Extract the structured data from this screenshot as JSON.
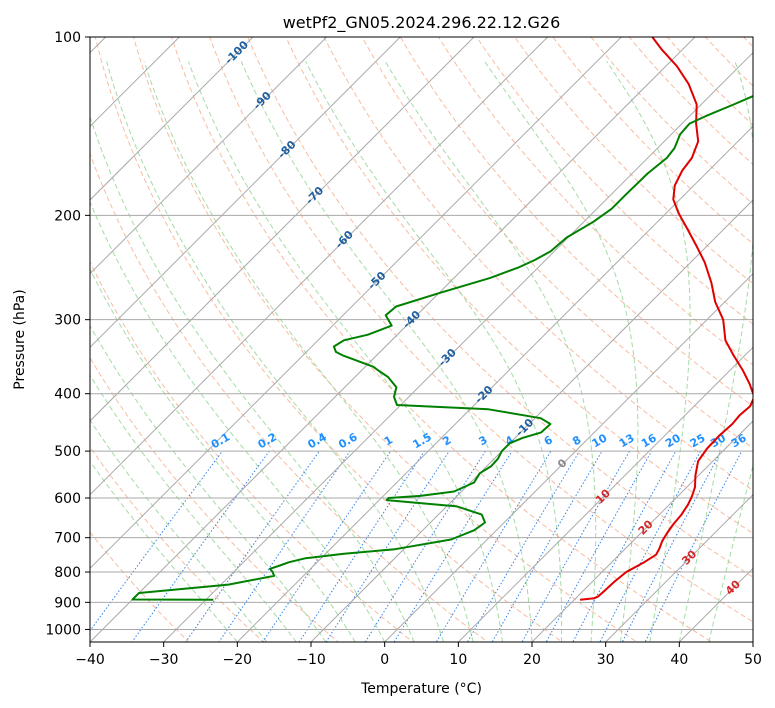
{
  "chart_data": {
    "type": "line",
    "title": "wetPf2_GN05.2024.296.22.12.G26",
    "xlabel": "Temperature (°C)",
    "ylabel": "Pressure (hPa)",
    "xlim": [
      -40,
      50
    ],
    "ylim": [
      1050,
      100
    ],
    "y_scale": "log",
    "x_ticks": [
      -40,
      -30,
      -20,
      -10,
      0,
      10,
      20,
      30,
      40,
      50
    ],
    "x_tick_labels": [
      "−40",
      "−30",
      "−20",
      "−10",
      "0",
      "10",
      "20",
      "30",
      "40",
      "50"
    ],
    "y_ticks": [
      100,
      200,
      300,
      400,
      500,
      600,
      700,
      800,
      900,
      1000
    ],
    "y_tick_labels": [
      "100",
      "200",
      "300",
      "400",
      "500",
      "600",
      "700",
      "800",
      "900",
      "1000"
    ],
    "grid": true,
    "colors": {
      "temperature": "#e00000",
      "dewpoint": "#008000",
      "isotherm": "#a9a9a9",
      "dry_adiabat": "#f4a582",
      "moist_adiabat": "#8fd18f",
      "mixing_ratio": "#1f77e4",
      "isotherm_label": "#1f5fa0",
      "mixing_label": "#1e90ff",
      "warm_label": "#d62728"
    },
    "series": [
      {
        "key": "temperature",
        "points": [
          [
            891,
            20.8
          ],
          [
            886,
            22.5
          ],
          [
            879,
            22.8
          ],
          [
            860,
            22.9
          ],
          [
            830,
            23.0
          ],
          [
            800,
            23.3
          ],
          [
            770,
            24.4
          ],
          [
            748,
            25.0
          ],
          [
            730,
            24.6
          ],
          [
            710,
            24.0
          ],
          [
            690,
            23.6
          ],
          [
            665,
            23.2
          ],
          [
            640,
            23.0
          ],
          [
            615,
            22.5
          ],
          [
            595,
            21.9
          ],
          [
            575,
            21.1
          ],
          [
            550,
            19.6
          ],
          [
            520,
            18.0
          ],
          [
            495,
            17.5
          ],
          [
            470,
            17.4
          ],
          [
            450,
            17.6
          ],
          [
            435,
            17.4
          ],
          [
            420,
            17.6
          ],
          [
            405,
            16.9
          ],
          [
            385,
            14.5
          ],
          [
            365,
            11.7
          ],
          [
            345,
            8.5
          ],
          [
            325,
            5.3
          ],
          [
            300,
            2.2
          ],
          [
            280,
            -1.3
          ],
          [
            260,
            -4.4
          ],
          [
            240,
            -8.1
          ],
          [
            225,
            -11.5
          ],
          [
            210,
            -15.2
          ],
          [
            198,
            -18.4
          ],
          [
            188,
            -20.9
          ],
          [
            178,
            -22.6
          ],
          [
            168,
            -23.6
          ],
          [
            160,
            -24.0
          ],
          [
            150,
            -25.4
          ],
          [
            140,
            -28.1
          ],
          [
            130,
            -30.6
          ],
          [
            120,
            -34.5
          ],
          [
            112,
            -38.5
          ],
          [
            105,
            -42.8
          ],
          [
            100,
            -45.8
          ]
        ]
      },
      {
        "key": "dewpoint",
        "points": [
          [
            891,
            -29.0
          ],
          [
            890,
            -40.0
          ],
          [
            870,
            -40.0
          ],
          [
            868,
            -40.0
          ],
          [
            840,
            -29.0
          ],
          [
            812,
            -24.0
          ],
          [
            800,
            -24.7
          ],
          [
            790,
            -25.5
          ],
          [
            780,
            -24.6
          ],
          [
            770,
            -23.8
          ],
          [
            758,
            -22.1
          ],
          [
            745,
            -17.5
          ],
          [
            732,
            -11.2
          ],
          [
            705,
            -4.9
          ],
          [
            680,
            -3.0
          ],
          [
            660,
            -2.6
          ],
          [
            640,
            -4.1
          ],
          [
            620,
            -8.6
          ],
          [
            605,
            -19.0
          ],
          [
            600,
            -19.0
          ],
          [
            595,
            -15.0
          ],
          [
            585,
            -11.0
          ],
          [
            565,
            -9.5
          ],
          [
            545,
            -10.0
          ],
          [
            530,
            -9.4
          ],
          [
            515,
            -9.5
          ],
          [
            500,
            -10.0
          ],
          [
            485,
            -10.0
          ],
          [
            475,
            -9.0
          ],
          [
            465,
            -7.2
          ],
          [
            450,
            -7.1
          ],
          [
            440,
            -9.2
          ],
          [
            425,
            -17.5
          ],
          [
            418,
            -30.5
          ],
          [
            405,
            -32.0
          ],
          [
            390,
            -33.0
          ],
          [
            375,
            -35.5
          ],
          [
            360,
            -39.0
          ],
          [
            345,
            -44.5
          ],
          [
            340,
            -46.0
          ],
          [
            333,
            -47.0
          ],
          [
            325,
            -46.5
          ],
          [
            318,
            -44.0
          ],
          [
            307,
            -42.0
          ],
          [
            295,
            -44.2
          ],
          [
            285,
            -44.0
          ],
          [
            270,
            -39.8
          ],
          [
            255,
            -35.1
          ],
          [
            245,
            -32.7
          ],
          [
            238,
            -31.5
          ],
          [
            230,
            -30.5
          ],
          [
            218,
            -30.2
          ],
          [
            205,
            -28.7
          ],
          [
            195,
            -28.0
          ],
          [
            185,
            -28.0
          ],
          [
            170,
            -27.9
          ],
          [
            160,
            -27.4
          ],
          [
            154,
            -27.7
          ],
          [
            146,
            -28.8
          ],
          [
            140,
            -29.0
          ],
          [
            136,
            -27.8
          ],
          [
            130,
            -25.6
          ],
          [
            124,
            -23.4
          ],
          [
            118,
            -20.2
          ],
          [
            112,
            -17.3
          ],
          [
            106,
            -15.0
          ],
          [
            101,
            -14.0
          ],
          [
            100,
            -14.0
          ]
        ]
      }
    ],
    "isotherm_labels": [
      "-100",
      "-90",
      "-80",
      "-70",
      "-60",
      "-50",
      "-40",
      "-30",
      "-20",
      "-10",
      "0",
      "10",
      "20",
      "30",
      "40"
    ],
    "mixing_ratio_labels": [
      "0.1",
      "0.2",
      "0.4",
      "0.6",
      "1",
      "1.5",
      "2",
      "3",
      "4",
      "6",
      "8",
      "10",
      "13",
      "16",
      "20",
      "25",
      "30",
      "36"
    ]
  }
}
